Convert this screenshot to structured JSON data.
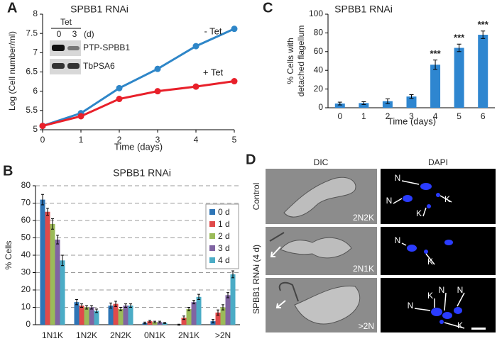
{
  "chart_data": [
    {
      "panel": "A",
      "type": "line",
      "title": "SPBB1 RNAi",
      "x_label": "Time (days)",
      "y_label": "Log (Cell number/ml)",
      "x": [
        0,
        1,
        2,
        3,
        4,
        5
      ],
      "xlim": [
        0,
        5
      ],
      "xticks": [
        0,
        1,
        2,
        3,
        4,
        5
      ],
      "ylim": [
        5,
        8
      ],
      "yticks": [
        5,
        5.5,
        6,
        6.5,
        7,
        7.5,
        8
      ],
      "grid": false,
      "series": [
        {
          "name": "- Tet",
          "color": "#2e86c8",
          "values": [
            5.1,
            5.43,
            6.08,
            6.58,
            7.17,
            7.62
          ]
        },
        {
          "name": "+ Tet",
          "color": "#e8202a",
          "values": [
            5.1,
            5.35,
            5.8,
            6.0,
            6.12,
            6.26
          ]
        }
      ],
      "inset": {
        "header": "Tet",
        "lanes": [
          "0",
          "3"
        ],
        "unit": "(d)",
        "bands": [
          "PTP-SPBB1",
          "TbPSA6"
        ]
      }
    },
    {
      "panel": "B",
      "type": "grouped_bar",
      "title": "SPBB1 RNAi",
      "y_label": "% Cells",
      "categories": [
        "1N1K",
        "1N2K",
        "2N2K",
        "0N1K",
        "2N1K",
        ">2N"
      ],
      "ylim": [
        0,
        80
      ],
      "yticks": [
        0,
        10,
        20,
        30,
        40,
        50,
        60,
        70,
        80
      ],
      "grid": true,
      "legend": "upper right",
      "series": [
        {
          "name": "0 d",
          "color": "#2e75b6",
          "values": [
            72,
            13,
            11,
            1,
            0,
            2
          ],
          "errors": [
            3,
            1.5,
            1.5,
            0.5,
            0.3,
            1
          ]
        },
        {
          "name": "1 d",
          "color": "#e04a4a",
          "values": [
            65,
            11,
            12,
            2,
            4,
            7
          ],
          "errors": [
            2,
            1,
            1.5,
            0.5,
            1,
            1.5
          ]
        },
        {
          "name": "2 d",
          "color": "#9bbb59",
          "values": [
            58,
            10,
            9,
            1.5,
            9,
            10
          ],
          "errors": [
            3,
            1,
            1,
            0.5,
            1,
            1.5
          ]
        },
        {
          "name": "3 d",
          "color": "#8064a2",
          "values": [
            49,
            10,
            11,
            1.5,
            13,
            17
          ],
          "errors": [
            2.5,
            1,
            1,
            0.5,
            1,
            1.5
          ]
        },
        {
          "name": "4 d",
          "color": "#4bacc6",
          "values": [
            37,
            8,
            11,
            1,
            16,
            29
          ],
          "errors": [
            3,
            1,
            1,
            0.3,
            1.5,
            2
          ]
        }
      ]
    },
    {
      "panel": "C",
      "type": "bar",
      "title": "SPBB1 RNAi",
      "x_label": "Time (days)",
      "y_label": [
        "% Cells with",
        "detached flagellum"
      ],
      "categories": [
        "0",
        "1",
        "2",
        "3",
        "4",
        "5",
        "6"
      ],
      "color": "#2e86d0",
      "values": [
        4.5,
        5,
        7,
        12,
        46,
        64,
        78
      ],
      "errors": [
        1.5,
        1.5,
        2.5,
        2,
        5,
        4,
        4
      ],
      "significance": [
        null,
        null,
        null,
        null,
        "***",
        "***",
        "***"
      ],
      "ylim": [
        0,
        100
      ],
      "yticks": [
        0,
        20,
        40,
        60,
        80,
        100
      ],
      "grid": false
    }
  ],
  "panel_d": {
    "label": "D",
    "columns": [
      "DIC",
      "DAPI"
    ],
    "row_labels": [
      "Control",
      "SPBB1 RNAi (4 d)"
    ],
    "image_labels": [
      "2N2K",
      "2N1K",
      ">2N"
    ],
    "markers": [
      [
        "N",
        "N",
        "K",
        "K"
      ],
      [
        "N",
        "K"
      ],
      [
        "K",
        "N",
        "N",
        "N",
        "K"
      ]
    ]
  }
}
